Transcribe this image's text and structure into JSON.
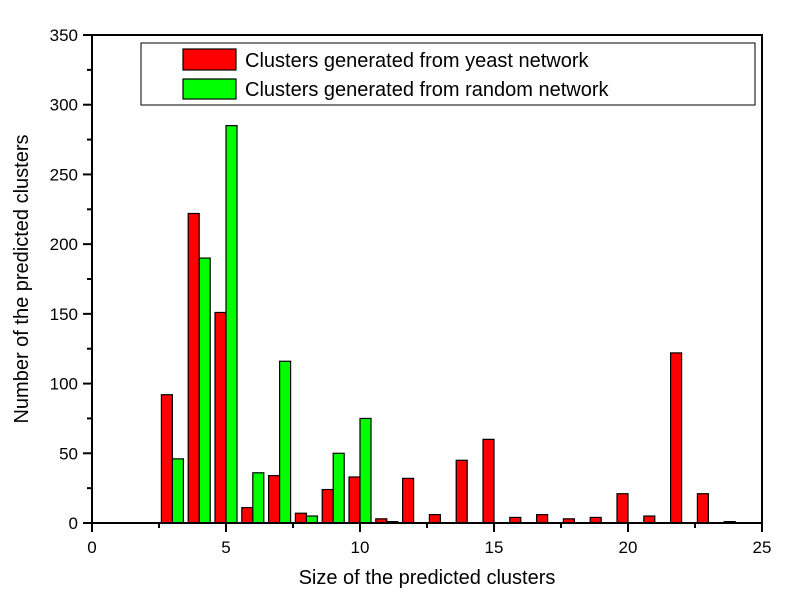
{
  "chart_data": {
    "type": "bar",
    "title": "",
    "xlabel": "Size of the predicted clusters",
    "ylabel": "Number of the predicted clusters",
    "xlim": [
      0,
      25
    ],
    "ylim": [
      0,
      350
    ],
    "x_ticks": [
      0,
      5,
      10,
      15,
      20,
      25
    ],
    "x_minor_ticks": [
      2.5,
      7.5,
      12.5,
      17.5,
      22.5
    ],
    "y_ticks": [
      0,
      50,
      100,
      150,
      200,
      250,
      300,
      350
    ],
    "y_minor_ticks": [
      25,
      75,
      125,
      175,
      225,
      275,
      325
    ],
    "grid": false,
    "legend_position": "top-right inside",
    "categories": [
      3,
      4,
      5,
      6,
      7,
      8,
      9,
      10,
      11,
      12,
      13,
      14,
      15,
      16,
      17,
      18,
      19,
      20,
      21,
      22,
      23,
      24
    ],
    "series": [
      {
        "name": "Clusters generated from yeast network",
        "color": "#ff0000",
        "values": [
          92,
          222,
          151,
          11,
          34,
          7,
          24,
          33,
          3,
          32,
          6,
          45,
          60,
          4,
          6,
          3,
          4,
          21,
          5,
          122,
          21,
          1
        ]
      },
      {
        "name": "Clusters generated from random network",
        "color": "#00ff00",
        "values": [
          46,
          190,
          285,
          36,
          116,
          5,
          50,
          75,
          1,
          0,
          0,
          0,
          0,
          0,
          0,
          0,
          0,
          0,
          0,
          0,
          0,
          0
        ]
      }
    ]
  }
}
